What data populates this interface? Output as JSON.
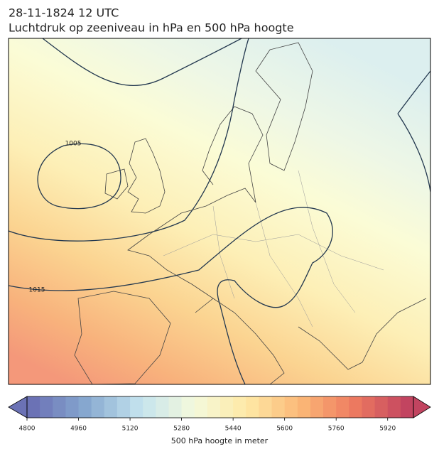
{
  "title": "28-11-1824 12 UTC",
  "subtitle": "Luchtdruk op zeeniveau in hPa en 500 hPa hoogte",
  "contour_labels": [
    "1005",
    "1015"
  ],
  "colorbar": {
    "label": "500 hPa hoogte in meter",
    "range": [
      4800,
      6000
    ],
    "step": 40,
    "ticks": [
      4800,
      4960,
      5120,
      5280,
      5440,
      5600,
      5760,
      5920
    ]
  }
}
